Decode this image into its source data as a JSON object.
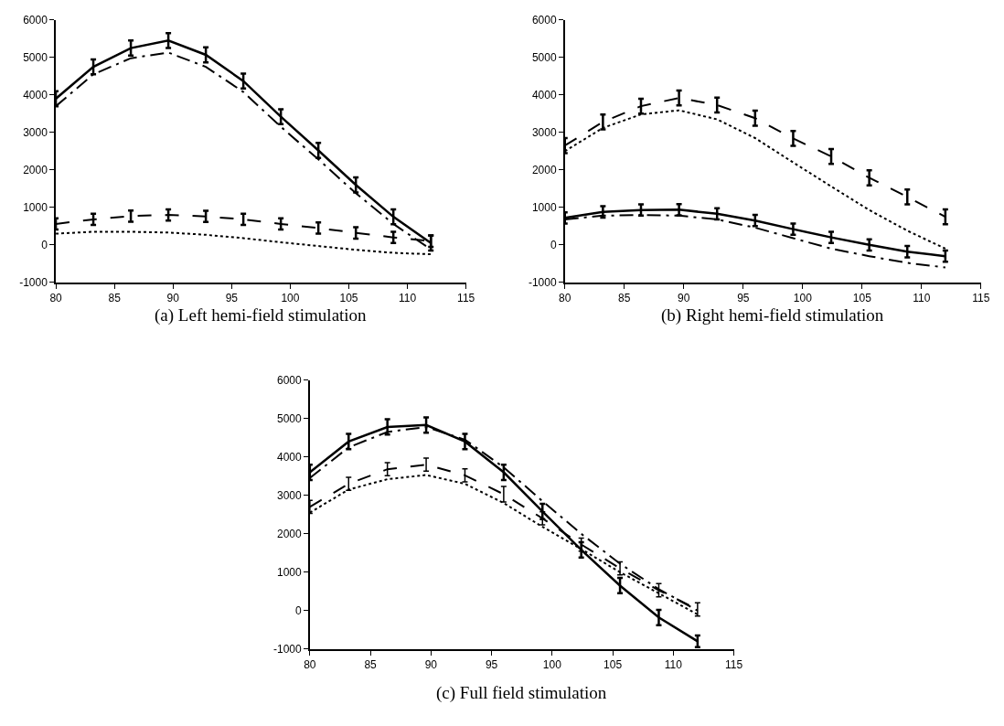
{
  "chart_data": [
    {
      "type": "line",
      "title": "(a) Left hemi-field stimulation",
      "x": [
        80,
        83.2,
        86.4,
        89.6,
        92.8,
        96,
        99.2,
        102.4,
        105.6,
        108.8,
        112
      ],
      "xlim": [
        80,
        115
      ],
      "xticks": [
        80,
        85,
        90,
        95,
        100,
        105,
        110,
        115
      ],
      "ylim": [
        -1000,
        6000
      ],
      "yticks": [
        -1000,
        0,
        1000,
        2000,
        3000,
        4000,
        5000,
        6000
      ],
      "grid": false,
      "legend": false,
      "marker": "none",
      "series": [
        {
          "color": "#000000",
          "line_style": "solid",
          "values": [
            3900,
            4750,
            5250,
            5450,
            5070,
            4370,
            3420,
            2520,
            1600,
            750,
            50
          ],
          "errors": [
            200,
            200,
            200,
            200,
            200,
            200,
            200,
            200,
            200,
            200,
            200
          ]
        },
        {
          "color": "#000000",
          "line_style": "dashdot",
          "values": [
            3700,
            4550,
            4980,
            5130,
            4750,
            4080,
            3150,
            2280,
            1380,
            560,
            -120
          ]
        },
        {
          "color": "#000000",
          "line_style": "dashed",
          "values": [
            560,
            680,
            770,
            800,
            760,
            680,
            560,
            450,
            320,
            200,
            100
          ],
          "errors": [
            150,
            150,
            150,
            150,
            150,
            150,
            150,
            150,
            150,
            150,
            150
          ]
        },
        {
          "color": "#000000",
          "line_style": "dotted",
          "values": [
            300,
            350,
            350,
            330,
            270,
            180,
            70,
            -30,
            -130,
            -210,
            -250
          ]
        }
      ]
    },
    {
      "type": "line",
      "title": "(b) Right hemi-field stimulation",
      "x": [
        80,
        83.2,
        86.4,
        89.6,
        92.8,
        96,
        99.2,
        102.4,
        105.6,
        108.8,
        112
      ],
      "xlim": [
        80,
        115
      ],
      "xticks": [
        80,
        85,
        90,
        95,
        100,
        105,
        110,
        115
      ],
      "ylim": [
        -1000,
        6000
      ],
      "yticks": [
        -1000,
        0,
        1000,
        2000,
        3000,
        4000,
        5000,
        6000
      ],
      "grid": false,
      "legend": false,
      "marker": "none",
      "series": [
        {
          "color": "#000000",
          "line_style": "dashed",
          "values": [
            2650,
            3280,
            3700,
            3920,
            3730,
            3380,
            2840,
            2360,
            1790,
            1280,
            750
          ],
          "errors": [
            200,
            200,
            200,
            200,
            200,
            200,
            200,
            200,
            200,
            200,
            200
          ]
        },
        {
          "color": "#000000",
          "line_style": "dotted",
          "values": [
            2500,
            3120,
            3480,
            3590,
            3350,
            2850,
            2200,
            1560,
            930,
            380,
            -100
          ]
        },
        {
          "color": "#000000",
          "line_style": "solid",
          "values": [
            720,
            880,
            930,
            940,
            830,
            650,
            420,
            200,
            0,
            -180,
            -300
          ],
          "errors": [
            150,
            150,
            150,
            150,
            150,
            150,
            150,
            150,
            150,
            150,
            150
          ]
        },
        {
          "color": "#000000",
          "line_style": "dashdot",
          "values": [
            680,
            780,
            800,
            780,
            680,
            460,
            180,
            -100,
            -300,
            -480,
            -600
          ]
        }
      ]
    },
    {
      "type": "line",
      "title": "(c) Full field stimulation",
      "x": [
        80,
        83.2,
        86.4,
        89.6,
        92.8,
        96,
        99.2,
        102.4,
        105.6,
        108.8,
        112
      ],
      "xlim": [
        80,
        115
      ],
      "xticks": [
        80,
        85,
        90,
        95,
        100,
        105,
        110,
        115
      ],
      "ylim": [
        -1000,
        6000
      ],
      "yticks": [
        -1000,
        0,
        1000,
        2000,
        3000,
        4000,
        5000,
        6000
      ],
      "grid": false,
      "legend": false,
      "marker": "none",
      "series": [
        {
          "color": "#000000",
          "line_style": "solid",
          "values": [
            3600,
            4400,
            4780,
            4830,
            4400,
            3600,
            2580,
            1580,
            650,
            -180,
            -800
          ],
          "errors": [
            200,
            200,
            200,
            200,
            200,
            200,
            200,
            200,
            200,
            200,
            150
          ]
        },
        {
          "color": "#000000",
          "line_style": "dashdot",
          "values": [
            3450,
            4250,
            4650,
            4780,
            4450,
            3730,
            2850,
            2000,
            1220,
            560,
            0
          ]
        },
        {
          "color": "#000000",
          "line_style": "dashed",
          "values": [
            2700,
            3300,
            3680,
            3800,
            3520,
            3030,
            2400,
            1720,
            1100,
            530,
            30
          ],
          "errors": [
            170,
            170,
            170,
            170,
            170,
            200,
            170,
            170,
            170,
            170,
            170
          ]
        },
        {
          "color": "#000000",
          "line_style": "dotted",
          "values": [
            2550,
            3150,
            3420,
            3530,
            3300,
            2800,
            2180,
            1600,
            1000,
            450,
            -100
          ]
        }
      ]
    }
  ]
}
